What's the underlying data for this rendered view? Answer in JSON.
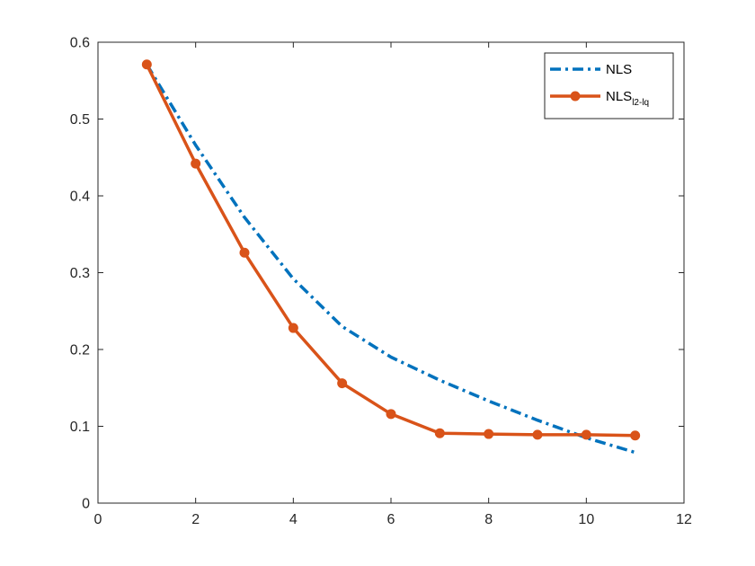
{
  "chart_data": {
    "type": "line",
    "title": "",
    "xlabel": "",
    "ylabel": "",
    "xlim": [
      0,
      12
    ],
    "ylim": [
      0,
      0.6
    ],
    "xticks": [
      0,
      2,
      4,
      6,
      8,
      10,
      12
    ],
    "yticks": [
      0,
      0.1,
      0.2,
      0.3,
      0.4,
      0.5,
      0.6
    ],
    "xtick_labels": [
      "0",
      "2",
      "4",
      "6",
      "8",
      "10",
      "12"
    ],
    "ytick_labels": [
      "0",
      "0.1",
      "0.2",
      "0.3",
      "0.4",
      "0.5",
      "0.6"
    ],
    "grid": false,
    "legend_position": "top-right",
    "x": [
      1,
      2,
      3,
      4,
      5,
      6,
      7,
      8,
      9,
      10,
      11
    ],
    "series": [
      {
        "name": "NLS",
        "legend_main": "NLS",
        "legend_subs": [],
        "values": [
          0.571,
          0.466,
          0.372,
          0.292,
          0.23,
          0.19,
          0.16,
          0.133,
          0.108,
          0.085,
          0.066
        ],
        "color": "#0072BD",
        "style": "dash-dot",
        "marker": "none"
      },
      {
        "name": "NLS l2-lq",
        "legend_main": "NLS",
        "legend_subs": [
          "l",
          "2",
          "-l",
          "q"
        ],
        "values": [
          0.571,
          0.442,
          0.326,
          0.228,
          0.156,
          0.116,
          0.091,
          0.09,
          0.089,
          0.089,
          0.088
        ],
        "color": "#D95319",
        "style": "solid",
        "marker": "circle"
      }
    ]
  }
}
